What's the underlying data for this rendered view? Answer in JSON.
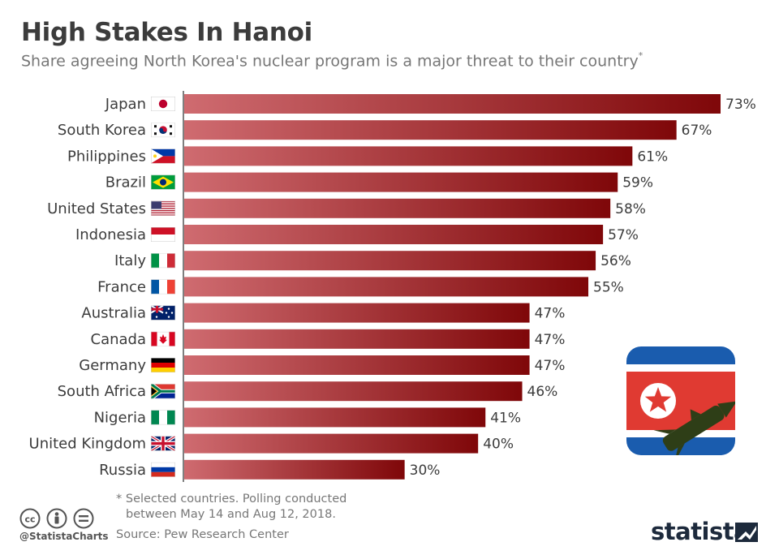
{
  "header": {
    "title": "High Stakes In Hanoi",
    "subtitle": "Share agreeing North Korea's nuclear program is a major threat to their country",
    "subtitle_mark": "*"
  },
  "chart_data": {
    "type": "bar",
    "orientation": "horizontal",
    "title": "High Stakes In Hanoi",
    "subtitle": "Share agreeing North Korea's nuclear program is a major threat to their country*",
    "categories": [
      "Japan",
      "South Korea",
      "Philippines",
      "Brazil",
      "United States",
      "Indonesia",
      "Italy",
      "France",
      "Australia",
      "Canada",
      "Germany",
      "South Africa",
      "Nigeria",
      "United Kingdom",
      "Russia"
    ],
    "values": [
      73,
      67,
      61,
      59,
      58,
      57,
      56,
      55,
      47,
      47,
      47,
      46,
      41,
      40,
      30
    ],
    "value_labels": [
      "73%",
      "67%",
      "61%",
      "59%",
      "58%",
      "57%",
      "56%",
      "55%",
      "47%",
      "47%",
      "47%",
      "46%",
      "41%",
      "40%",
      "30%"
    ],
    "flags": [
      "japan-flag",
      "south-korea-flag",
      "philippines-flag",
      "brazil-flag",
      "united-states-flag",
      "indonesia-flag",
      "italy-flag",
      "france-flag",
      "australia-flag",
      "canada-flag",
      "germany-flag",
      "south-africa-flag",
      "nigeria-flag",
      "united-kingdom-flag",
      "russia-flag"
    ],
    "xlim": [
      0,
      73
    ],
    "grid": false,
    "bar_gradient": [
      "#cf6b70",
      "#7f0709"
    ]
  },
  "footer": {
    "footnote_line1": "* Selected countries. Polling conducted",
    "footnote_line2": "between May 14 and Aug 12, 2018.",
    "source": "Source: Pew Research Center",
    "handle": "@StatistaCharts",
    "brand": "statista"
  },
  "icons": [
    "cc-icon",
    "attribution-icon",
    "no-derivatives-icon",
    "north-korea-missile-icon"
  ]
}
